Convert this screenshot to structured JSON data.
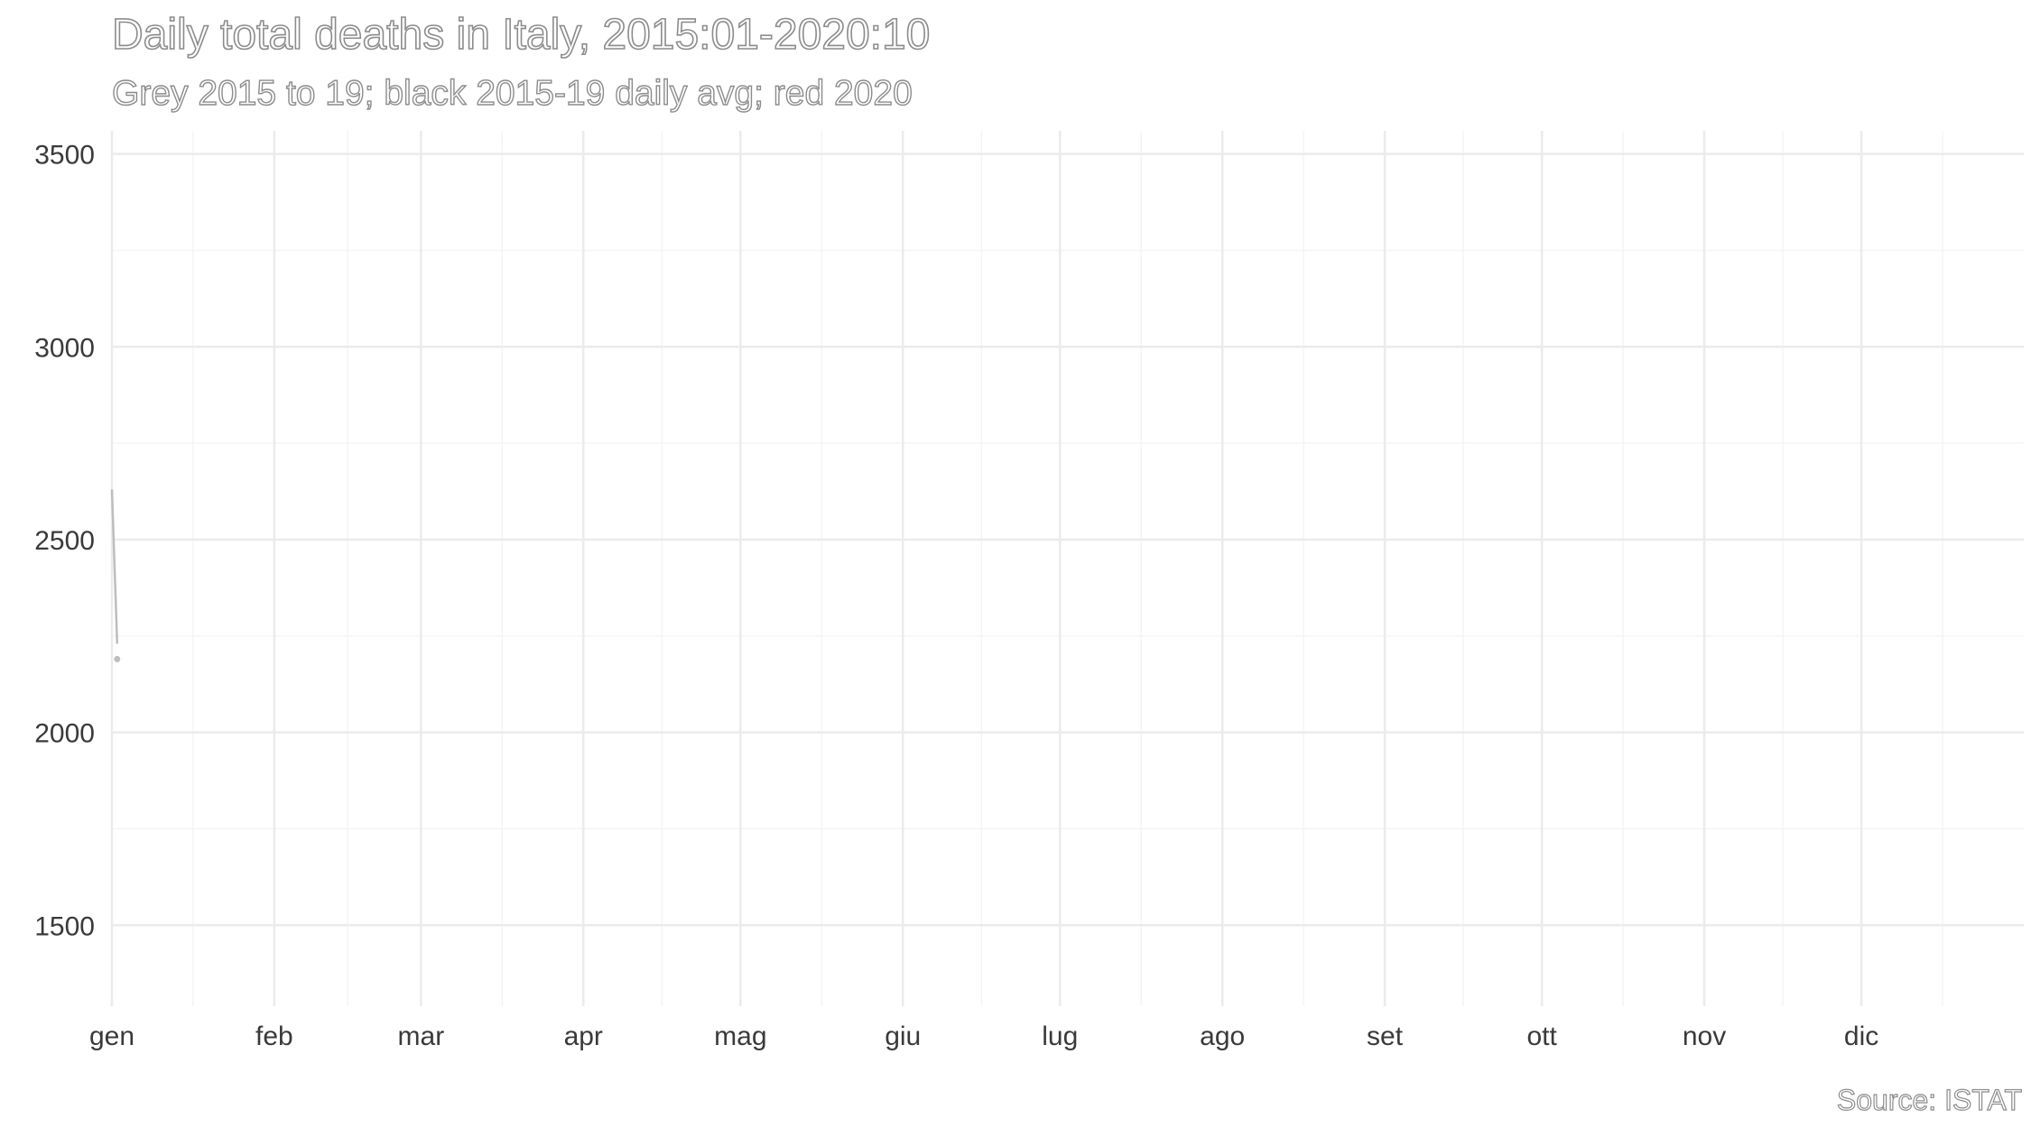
{
  "chart_data": {
    "type": "line",
    "title": "Daily total deaths in Italy, 2015:01-2020:10",
    "subtitle": "Grey 2015 to 19; black 2015-19 daily avg; red 2020",
    "caption": "Source: ISTAT",
    "xlabel": "",
    "ylabel": "",
    "x_tick_labels": [
      "gen",
      "feb",
      "mar",
      "apr",
      "mag",
      "giu",
      "lug",
      "ago",
      "set",
      "ott",
      "nov",
      "dic"
    ],
    "y_ticks": [
      1500,
      2000,
      2500,
      3000,
      3500
    ],
    "ylim": [
      1290,
      3560
    ],
    "xlim": [
      1,
      366
    ],
    "grid": true,
    "legend": "none",
    "colors": {
      "grey_years": "#bdbdbd",
      "average": "#000000",
      "year_2020": "#d7191c"
    },
    "series": [
      {
        "name": "2015",
        "color": "#bdbdbd",
        "x": [
          1,
          2
        ],
        "y": [
          2630,
          2230
        ]
      }
    ],
    "points": [
      {
        "x": 2,
        "y": 2190,
        "color": "#bdbdbd"
      }
    ]
  }
}
